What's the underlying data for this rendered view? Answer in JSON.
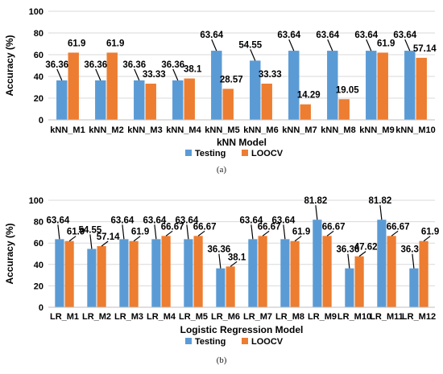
{
  "chart_data": [
    {
      "type": "bar",
      "xlabel": "kNN Model",
      "ylabel": "Accuracy (%)",
      "ylim": [
        0,
        100
      ],
      "yticks": [
        0,
        20,
        40,
        60,
        80,
        100
      ],
      "categories": [
        "kNN_M1",
        "kNN_M2",
        "kNN_M3",
        "kNN_M4",
        "kNN_M5",
        "kNN_M6",
        "kNN_M7",
        "kNN_M8",
        "kNN_M9",
        "kNN_M10"
      ],
      "series": [
        {
          "name": "Testing",
          "values": [
            36.36,
            36.36,
            36.36,
            36.36,
            63.64,
            54.55,
            63.64,
            63.64,
            63.64,
            63.64
          ]
        },
        {
          "name": "LOOCV",
          "values": [
            61.9,
            61.9,
            33.33,
            38.1,
            28.57,
            33.33,
            14.29,
            19.05,
            61.9,
            57.14
          ]
        }
      ],
      "grid": true,
      "legend": "bottom"
    },
    {
      "type": "bar",
      "xlabel": "Logistic Regression Model",
      "ylabel": "Accuracy (%)",
      "ylim": [
        0,
        100
      ],
      "yticks": [
        0,
        20,
        40,
        60,
        80,
        100
      ],
      "categories": [
        "LR_M1",
        "LR_M2",
        "LR_M3",
        "LR_M4",
        "LR_M5",
        "LR_M6",
        "LR_M7",
        "LR_M8",
        "LR_M9",
        "LR_M10",
        "LR_M11",
        "LR_M12"
      ],
      "series": [
        {
          "name": "Testing",
          "values": [
            63.64,
            54.55,
            63.64,
            63.64,
            63.64,
            36.36,
            63.64,
            63.64,
            81.82,
            36.36,
            81.82,
            36.36
          ]
        },
        {
          "name": "LOOCV",
          "values": [
            61.9,
            57.14,
            61.9,
            66.67,
            66.67,
            38.1,
            66.67,
            61.9,
            66.67,
            47.62,
            66.67,
            61.9
          ]
        }
      ],
      "grid": true,
      "legend": "bottom"
    }
  ],
  "colors": {
    "Testing": "#5B9BD5",
    "LOOCV": "#ED7D31"
  },
  "captions": {
    "a": "(a)",
    "b": "(b)"
  }
}
